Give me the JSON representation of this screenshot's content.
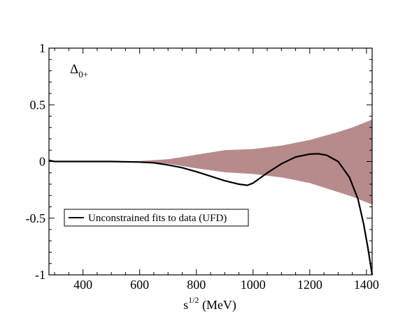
{
  "chart_data": {
    "type": "line",
    "title": "",
    "xlabel": {
      "base": "s",
      "sup": "1/2",
      "rest": " (MeV)"
    },
    "ylabel": "",
    "annotation": {
      "base": "Δ",
      "sub": "0+"
    },
    "xlim": [
      280,
      1420
    ],
    "ylim": [
      -1,
      1
    ],
    "x_ticks": [
      400,
      600,
      800,
      1000,
      1200,
      1400
    ],
    "x_tick_labels": [
      "400",
      "600",
      "800",
      "1000",
      "1200",
      "1400"
    ],
    "y_ticks": [
      -1,
      -0.5,
      0,
      0.5,
      1
    ],
    "y_tick_labels": [
      "-1",
      "-0.5",
      "0",
      "0.5",
      "1"
    ],
    "grid": false,
    "legend": {
      "position": "lower-left",
      "entries": [
        "Unconstrained fits to data (UFD)"
      ]
    },
    "band": {
      "color": "#b78b8b",
      "x": [
        280,
        400,
        500,
        600,
        700,
        800,
        900,
        1000,
        1100,
        1200,
        1300,
        1350,
        1420
      ],
      "upper": [
        0.0,
        0.0,
        0.002,
        0.005,
        0.02,
        0.06,
        0.1,
        0.11,
        0.14,
        0.19,
        0.26,
        0.3,
        0.37
      ],
      "lower": [
        0.0,
        0.0,
        -0.002,
        -0.005,
        -0.02,
        -0.06,
        -0.095,
        -0.11,
        -0.14,
        -0.19,
        -0.27,
        -0.31,
        -0.38
      ]
    },
    "series": [
      {
        "name": "Unconstrained fits to data (UFD)",
        "color": "#000000",
        "x": [
          280,
          300,
          400,
          500,
          600,
          650,
          700,
          750,
          800,
          850,
          900,
          950,
          980,
          1000,
          1050,
          1100,
          1150,
          1200,
          1230,
          1260,
          1300,
          1340,
          1370,
          1390,
          1405,
          1415,
          1420
        ],
        "y": [
          0.01,
          0.0,
          0.0,
          0.0,
          -0.005,
          -0.012,
          -0.03,
          -0.055,
          -0.09,
          -0.13,
          -0.17,
          -0.2,
          -0.21,
          -0.19,
          -0.1,
          -0.02,
          0.04,
          0.065,
          0.068,
          0.055,
          0.0,
          -0.14,
          -0.33,
          -0.55,
          -0.76,
          -0.92,
          -1.0
        ]
      }
    ]
  }
}
